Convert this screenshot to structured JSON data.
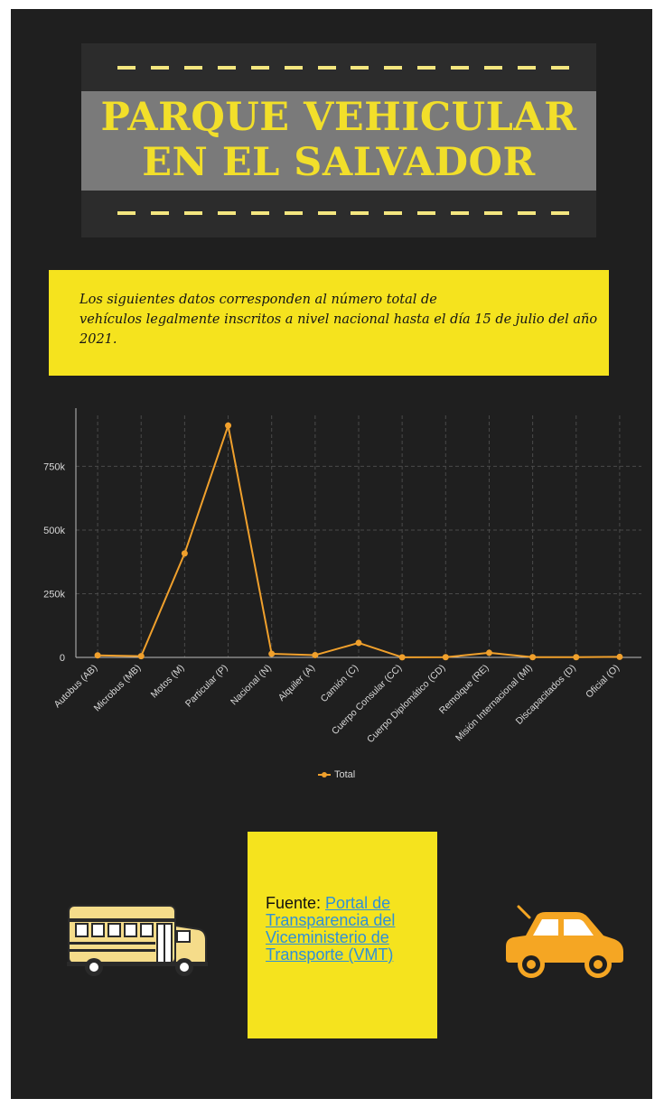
{
  "header": {
    "title_line1": "PARQUE VEHICULAR",
    "title_line2": "EN EL SALVADOR"
  },
  "intro": {
    "line1": "Los siguientes datos corresponden al número total de",
    "line2": "vehículos legalmente inscritos a nivel nacional hasta el día 15 de julio del año",
    "line3": "2021."
  },
  "chart_data": {
    "type": "line",
    "title": "",
    "xlabel": "",
    "ylabel": "",
    "categories": [
      "Autobus (AB)",
      "Microbus (MB)",
      "Motos (M)",
      "Particular (P)",
      "Nacional (N)",
      "Alquiler (A)",
      "Camión (C)",
      "Cuerpo Consular (CC)",
      "Cuerpo Diplomático (CD)",
      "Remolque (RE)",
      "Misión Internacional (MI)",
      "Discapacitados (D)",
      "Oficial (O)"
    ],
    "series": [
      {
        "name": "Total",
        "values": [
          8000,
          5000,
          408000,
          910000,
          14000,
          9000,
          57000,
          500,
          800,
          18000,
          800,
          1000,
          2000
        ]
      }
    ],
    "yticks": [
      "0",
      "250k",
      "500k",
      "750k"
    ],
    "ytick_values": [
      0,
      250000,
      500000,
      750000
    ],
    "ylim": [
      0,
      950000
    ],
    "grid": true,
    "legend": "bottom-center",
    "line_color": "#f0a02c"
  },
  "source": {
    "prefix": "Fuente: ",
    "link_text": "Portal de Transparencia del Viceministerio de Transporte (VMT)"
  },
  "icons": {
    "left": "school-bus-icon",
    "right": "car-icon"
  },
  "colors": {
    "background": "#1f1f1f",
    "accent_yellow": "#f5e31e",
    "title_yellow": "#f2df2a",
    "link_blue": "#2f8fd8",
    "line_orange": "#f0a02c",
    "car_orange": "#f5a623"
  }
}
